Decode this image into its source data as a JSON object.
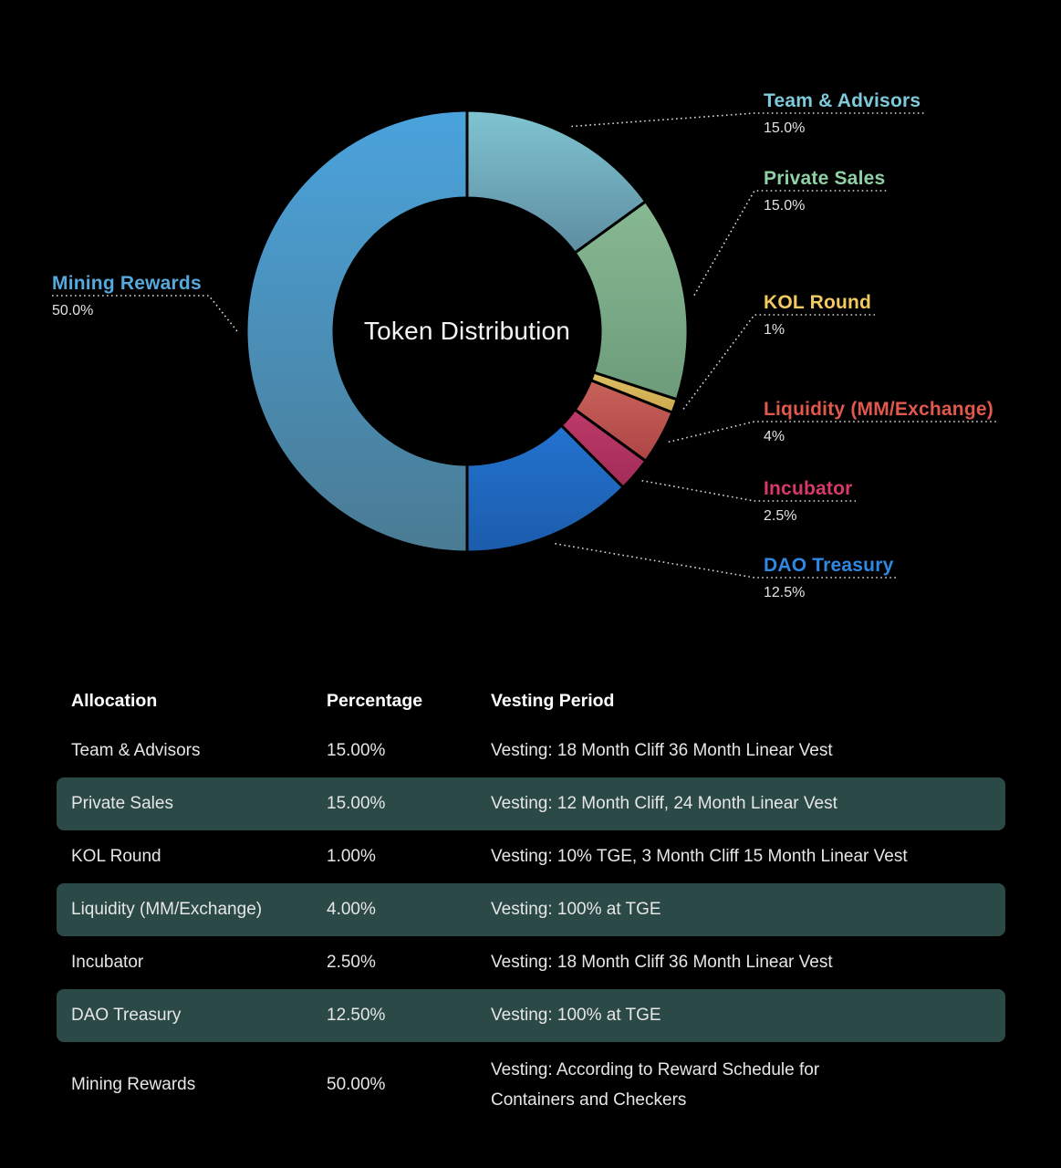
{
  "chart_data": {
    "type": "pie",
    "variant": "donut",
    "title": "Token Distribution",
    "legend_position": "callout-labels",
    "categories": [
      "Team & Advisors",
      "Private Sales",
      "KOL Round",
      "Liquidity (MM/Exchange)",
      "Incubator",
      "DAO Treasury",
      "Mining Rewards"
    ],
    "values": [
      15.0,
      15.0,
      1.0,
      4.0,
      2.5,
      12.5,
      50.0
    ],
    "slices": [
      {
        "label": "Team & Advisors",
        "value": 15.0,
        "pct_text": "15.0%",
        "label_color": "#7ec9db",
        "color_top": "#80c4d2",
        "color_bottom": "#5d8da0"
      },
      {
        "label": "Private Sales",
        "value": 15.0,
        "pct_text": "15.0%",
        "label_color": "#8fd0a5",
        "color_top": "#87b992",
        "color_bottom": "#6d9b7b"
      },
      {
        "label": "KOL Round",
        "value": 1.0,
        "pct_text": "1%",
        "label_color": "#f2ca5f",
        "color_top": "#ddbe63",
        "color_bottom": "#cda94f"
      },
      {
        "label": "Liquidity (MM/Exchange)",
        "value": 4.0,
        "pct_text": "4%",
        "label_color": "#e0584e",
        "color_top": "#c9625a",
        "color_bottom": "#ad4546"
      },
      {
        "label": "Incubator",
        "value": 2.5,
        "pct_text": "2.5%",
        "label_color": "#d83a68",
        "color_top": "#bd3a68",
        "color_bottom": "#a22c58"
      },
      {
        "label": "DAO Treasury",
        "value": 12.5,
        "pct_text": "12.5%",
        "label_color": "#2f89e3",
        "color_top": "#2373d0",
        "color_bottom": "#1b5cab"
      },
      {
        "label": "Mining Rewards",
        "value": 50.0,
        "pct_text": "50.0%",
        "label_color": "#55a9dc",
        "color_top": "#4aa3dd",
        "color_bottom": "#4a7b93"
      }
    ]
  },
  "table": {
    "headers": [
      "Allocation",
      "Percentage",
      "Vesting Period"
    ],
    "rows": [
      {
        "allocation": "Team & Advisors",
        "percentage": "15.00%",
        "vesting": "Vesting: 18 Month Cliff 36 Month Linear Vest",
        "highlighted": false
      },
      {
        "allocation": "Private Sales",
        "percentage": "15.00%",
        "vesting": "Vesting: 12 Month Cliff, 24 Month Linear Vest",
        "highlighted": true
      },
      {
        "allocation": "KOL Round",
        "percentage": "1.00%",
        "vesting": "Vesting: 10% TGE, 3 Month Cliff 15 Month Linear Vest",
        "highlighted": false
      },
      {
        "allocation": "Liquidity (MM/Exchange)",
        "percentage": "4.00%",
        "vesting": "Vesting: 100% at TGE",
        "highlighted": true
      },
      {
        "allocation": "Incubator",
        "percentage": "2.50%",
        "vesting": "Vesting: 18 Month Cliff 36 Month Linear Vest",
        "highlighted": false
      },
      {
        "allocation": "DAO Treasury",
        "percentage": "12.50%",
        "vesting": "Vesting: 100% at TGE",
        "highlighted": true
      },
      {
        "allocation": "Mining Rewards",
        "percentage": "50.00%",
        "vesting": "Vesting: According to Reward Schedule for\nContainers and Checkers",
        "highlighted": false
      }
    ],
    "highlight_color": "#2b4946"
  },
  "colors": {
    "background": "#000000",
    "leader_line": "#d9d9d9",
    "title_text": "#f4f4f4",
    "pct_text": "#e2e2e2",
    "header_text": "#ffffff",
    "row_text": "#e6e6e6"
  }
}
